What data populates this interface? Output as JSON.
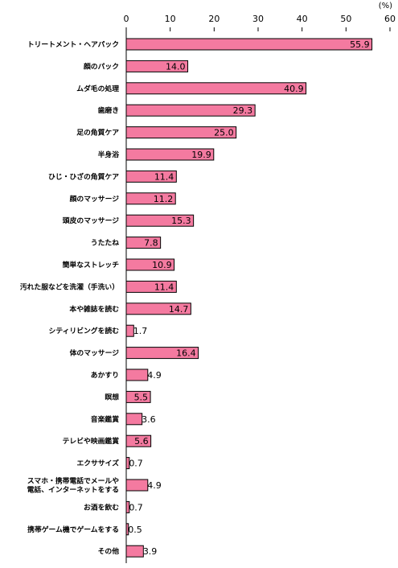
{
  "chart_data": {
    "type": "bar",
    "orientation": "horizontal",
    "unit_label": "(%)",
    "title": "",
    "xlabel": "",
    "ylabel": "",
    "xlim": [
      0,
      60
    ],
    "ticks": [
      "0",
      "10",
      "20",
      "30",
      "40",
      "50",
      "60"
    ],
    "grid": false,
    "bar_color": "#f47aa0",
    "bar_edge_color": "#000000",
    "categories": [
      [
        "トリートメント・ヘアパック"
      ],
      [
        "顔のパック"
      ],
      [
        "ムダ毛の処理"
      ],
      [
        "歯磨き"
      ],
      [
        "足の角質ケア"
      ],
      [
        "半身浴"
      ],
      [
        "ひじ・ひざの角質ケア"
      ],
      [
        "顔のマッサージ"
      ],
      [
        "頭皮のマッサージ"
      ],
      [
        "うたたね"
      ],
      [
        "簡単なストレッチ"
      ],
      [
        "汚れた服などを洗濯（手洗い）"
      ],
      [
        "本や雑誌を読む"
      ],
      [
        "シティリビングを読む"
      ],
      [
        "体のマッサージ"
      ],
      [
        "あかすり"
      ],
      [
        "瞑想"
      ],
      [
        "音楽鑑賞"
      ],
      [
        "テレビや映画鑑賞"
      ],
      [
        "エクササイズ"
      ],
      [
        "スマホ・携帯電話でメールや",
        "電話、インターネットをする"
      ],
      [
        "お酒を飲む"
      ],
      [
        "携帯ゲーム機でゲームをする"
      ],
      [
        "その他"
      ]
    ],
    "values": [
      55.9,
      14.0,
      40.9,
      29.3,
      25.0,
      19.9,
      11.4,
      11.2,
      15.3,
      7.8,
      10.9,
      11.4,
      14.7,
      1.7,
      16.4,
      4.9,
      5.5,
      3.6,
      5.6,
      0.7,
      4.9,
      0.7,
      0.5,
      3.9
    ],
    "value_labels": [
      "55.9",
      "14.0",
      "40.9",
      "29.3",
      "25.0",
      "19.9",
      "11.4",
      "11.2",
      "15.3",
      "7.8",
      "10.9",
      "11.4",
      "14.7",
      "1.7",
      "16.4",
      "4.9",
      "5.5",
      "3.6",
      "5.6",
      "0.7",
      "4.9",
      "0.7",
      "0.5",
      "3.9"
    ]
  }
}
